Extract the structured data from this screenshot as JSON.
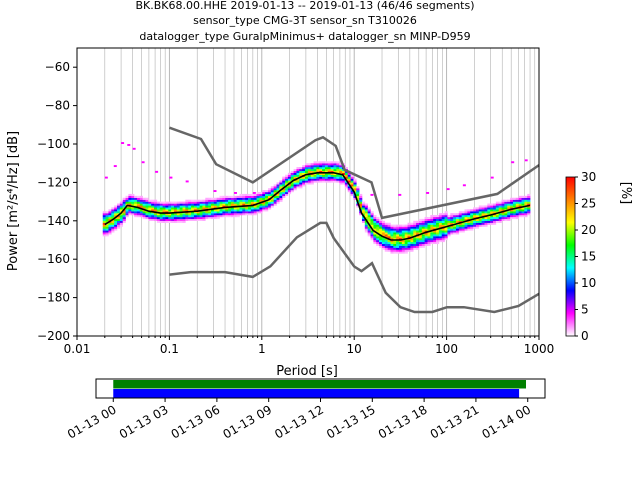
{
  "chart_data": [
    {
      "type": "heatmap",
      "title_lines": [
        "BK.BK68.00.HHE   2019-01-13 -- 2019-01-13  (46/46 segments)",
        "sensor_type CMG-3T sensor_sn T310026",
        "datalogger_type GuralpMinimus+ datalogger_sn MINP-D959"
      ],
      "xlabel": "Period [s]",
      "ylabel": "Power [m²/s⁴/Hz] [dB]",
      "xscale": "log",
      "xlim": [
        0.01,
        1000
      ],
      "ylim": [
        -200,
        -50
      ],
      "xticks": [
        {
          "v": 0.01,
          "label": "0.01"
        },
        {
          "v": 0.1,
          "label": "0.1"
        },
        {
          "v": 1,
          "label": "1"
        },
        {
          "v": 10,
          "label": "10"
        },
        {
          "v": 100,
          "label": "100"
        },
        {
          "v": 1000,
          "label": "1000"
        }
      ],
      "yticks": [
        {
          "v": -60,
          "label": "−60"
        },
        {
          "v": -80,
          "label": "−80"
        },
        {
          "v": -100,
          "label": "−100"
        },
        {
          "v": -120,
          "label": "−120"
        },
        {
          "v": -140,
          "label": "−140"
        },
        {
          "v": -160,
          "label": "−160"
        },
        {
          "v": -180,
          "label": "−180"
        },
        {
          "v": -200,
          "label": "−200"
        }
      ],
      "grid": "vertical-major-and-minor",
      "nhnm": [
        [
          0.1,
          -168
        ],
        [
          0.17,
          -166.7
        ],
        [
          0.4,
          -166.7
        ],
        [
          0.8,
          -169.2
        ],
        [
          1.24,
          -163.7
        ],
        [
          2.4,
          -148.6
        ],
        [
          4.3,
          -141.1
        ],
        [
          5.0,
          -141.1
        ],
        [
          6.0,
          -149.0
        ],
        [
          10.0,
          -163.8
        ],
        [
          12.0,
          -166.2
        ],
        [
          15.6,
          -162.1
        ],
        [
          21.9,
          -177.5
        ],
        [
          31.6,
          -185.0
        ],
        [
          45.0,
          -187.5
        ],
        [
          70.0,
          -187.5
        ],
        [
          101,
          -185.0
        ],
        [
          154,
          -185.0
        ],
        [
          328,
          -187.5
        ],
        [
          600,
          -184.4
        ],
        [
          1000,
          -178.0
        ]
      ],
      "nlnm_high": [
        [
          0.1,
          -91.5
        ],
        [
          0.22,
          -97.4
        ],
        [
          0.32,
          -110.5
        ],
        [
          0.8,
          -120.0
        ],
        [
          3.8,
          -98.0
        ],
        [
          4.6,
          -96.5
        ],
        [
          6.3,
          -101.0
        ],
        [
          7.9,
          -113.5
        ],
        [
          15.4,
          -120.0
        ],
        [
          20.0,
          -138.5
        ],
        [
          354.8,
          -126.0
        ],
        [
          1000,
          -111.0
        ]
      ],
      "mode_curve": [
        [
          0.02,
          -142
        ],
        [
          0.025,
          -139
        ],
        [
          0.03,
          -136
        ],
        [
          0.035,
          -132
        ],
        [
          0.045,
          -133
        ],
        [
          0.06,
          -135
        ],
        [
          0.08,
          -136
        ],
        [
          0.1,
          -136
        ],
        [
          0.2,
          -135
        ],
        [
          0.4,
          -133
        ],
        [
          0.8,
          -132
        ],
        [
          1.2,
          -129
        ],
        [
          1.6,
          -124
        ],
        [
          2.2,
          -119
        ],
        [
          3,
          -116
        ],
        [
          4,
          -115
        ],
        [
          6,
          -115
        ],
        [
          7.5,
          -116
        ],
        [
          10,
          -125
        ],
        [
          12,
          -136
        ],
        [
          16,
          -145
        ],
        [
          20,
          -148
        ],
        [
          25,
          -150
        ],
        [
          32,
          -150
        ],
        [
          40,
          -149
        ],
        [
          60,
          -146
        ],
        [
          100,
          -143
        ],
        [
          200,
          -139
        ],
        [
          300,
          -137
        ],
        [
          500,
          -134
        ],
        [
          800,
          -132
        ]
      ],
      "colorbar": {
        "label": "[%]",
        "range": [
          0,
          30
        ],
        "ticks": [
          "0",
          "5",
          "10",
          "15",
          "20",
          "25",
          "30"
        ],
        "colormap": [
          "#ffffff",
          "#ff00ff",
          "#0000ff",
          "#00ffff",
          "#00ff00",
          "#ffff00",
          "#ff8000",
          "#ff0000"
        ]
      }
    },
    {
      "type": "timeline",
      "xtick_labels": [
        "01-13 00",
        "01-13 03",
        "01-13 06",
        "01-13 09",
        "01-13 12",
        "01-13 15",
        "01-13 18",
        "01-13 21",
        "01-14 00"
      ],
      "xlim_hours": [
        -1,
        25
      ],
      "bars": [
        {
          "color": "#008000",
          "start_hour": 0,
          "end_hour": 23.9
        },
        {
          "color": "#0000ff",
          "start_hour": 0,
          "end_hour": 23.5
        }
      ]
    }
  ],
  "colors": {
    "curve_gray": "#666666",
    "mode_line": "#000000"
  }
}
